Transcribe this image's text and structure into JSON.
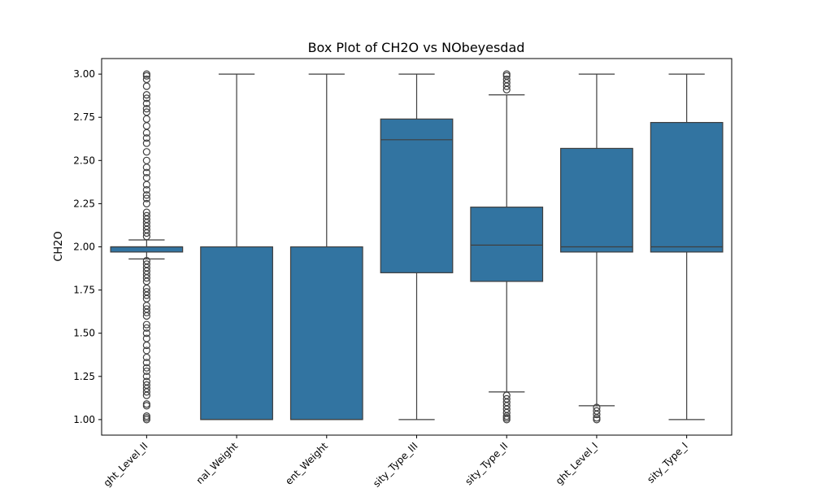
{
  "chart_data": {
    "type": "box",
    "title": "Box Plot of CH2O vs NObeyesdad",
    "xlabel": "",
    "ylabel": "CH2O",
    "ylim": [
      0.91,
      3.09
    ],
    "yticks": [
      1.0,
      1.25,
      1.5,
      1.75,
      2.0,
      2.25,
      2.5,
      2.75,
      3.0
    ],
    "ytick_labels": [
      "1.00",
      "1.25",
      "1.50",
      "1.75",
      "2.00",
      "2.25",
      "2.50",
      "2.75",
      "3.00"
    ],
    "categories": [
      "Overweight_Level_II",
      "Normal_Weight",
      "Insufficient_Weight",
      "Obesity_Type_III",
      "Obesity_Type_II",
      "Overweight_Level_I",
      "Obesity_Type_I"
    ],
    "x_tick_labels": [
      "ght_Level_II",
      "nal_Weight",
      "ent_Weight",
      "sity_Type_III",
      "sity_Type_II",
      "ght_Level_I",
      "sity_Type_I"
    ],
    "box_color": "#3274a1",
    "line_color": "#3f3f3f",
    "boxes": [
      {
        "q1": 1.97,
        "median": 2.0,
        "q3": 2.0,
        "whisker_low": 1.93,
        "whisker_high": 2.04,
        "outliers": [
          1.0,
          1.01,
          1.02,
          1.08,
          1.09,
          1.14,
          1.16,
          1.18,
          1.2,
          1.22,
          1.25,
          1.28,
          1.3,
          1.33,
          1.36,
          1.4,
          1.43,
          1.47,
          1.5,
          1.53,
          1.55,
          1.6,
          1.62,
          1.64,
          1.66,
          1.7,
          1.72,
          1.74,
          1.76,
          1.8,
          1.82,
          1.84,
          1.86,
          1.88,
          1.9,
          1.92,
          2.06,
          2.08,
          2.1,
          2.12,
          2.14,
          2.16,
          2.18,
          2.2,
          2.25,
          2.28,
          2.3,
          2.33,
          2.36,
          2.4,
          2.43,
          2.46,
          2.5,
          2.55,
          2.6,
          2.63,
          2.66,
          2.7,
          2.74,
          2.78,
          2.8,
          2.83,
          2.86,
          2.88,
          2.93,
          2.97,
          2.99,
          3.0
        ]
      },
      {
        "q1": 1.0,
        "median": 1.0,
        "q3": 2.0,
        "whisker_low": 1.0,
        "whisker_high": 3.0,
        "outliers": []
      },
      {
        "q1": 1.0,
        "median": 1.0,
        "q3": 2.0,
        "whisker_low": 1.0,
        "whisker_high": 3.0,
        "outliers": []
      },
      {
        "q1": 1.85,
        "median": 2.62,
        "q3": 2.74,
        "whisker_low": 1.0,
        "whisker_high": 3.0,
        "outliers": []
      },
      {
        "q1": 1.8,
        "median": 2.01,
        "q3": 2.23,
        "whisker_low": 1.16,
        "whisker_high": 2.88,
        "outliers": [
          1.0,
          1.01,
          1.02,
          1.04,
          1.06,
          1.08,
          1.1,
          1.12,
          1.14,
          2.91,
          2.93,
          2.95,
          2.97,
          2.99,
          3.0
        ]
      },
      {
        "q1": 1.97,
        "median": 2.0,
        "q3": 2.57,
        "whisker_low": 1.08,
        "whisker_high": 3.0,
        "outliers": [
          1.0,
          1.01,
          1.03,
          1.05,
          1.07
        ]
      },
      {
        "q1": 1.97,
        "median": 2.0,
        "q3": 2.72,
        "whisker_low": 1.0,
        "whisker_high": 3.0,
        "outliers": []
      }
    ]
  }
}
